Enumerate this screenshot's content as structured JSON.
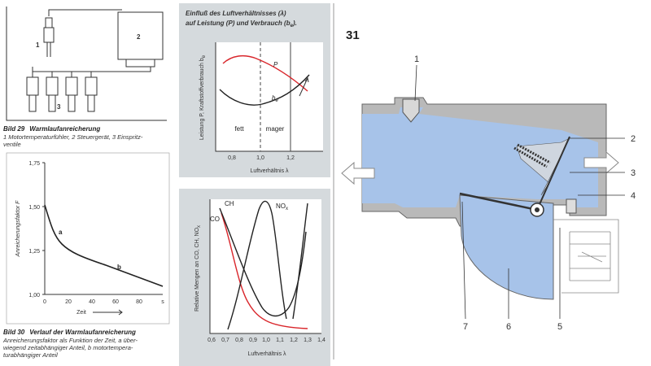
{
  "figure29": {
    "number_labels": [
      "1",
      "2",
      "3"
    ],
    "caption": {
      "label": "Bild 29",
      "title": "Warmlaufanreicherung",
      "lines": [
        "1 Motortemperaturfühler, 2 Steuergerät, 3 Einspritz-",
        "ventile"
      ]
    }
  },
  "figure30": {
    "y_label": "Anreicherungsfaktor F",
    "y_ticks": [
      "1,75",
      "1,50",
      "1,25",
      "1,00"
    ],
    "x_ticks": [
      "0",
      "20",
      "40",
      "60",
      "80",
      "s"
    ],
    "x_label": "Zeit",
    "curve_labels": [
      "a",
      "b"
    ],
    "caption": {
      "label": "Bild 30",
      "title": "Verlauf der Warmlaufanreicherung",
      "lines": [
        "Anreicherungsfaktor als Funktion der Zeit, a über-",
        "wiegend zeitabhängiger Anteil, b motortempera-",
        "turabhängiger Anteil"
      ]
    }
  },
  "chart_power": {
    "title_lines": [
      [
        "Einfluß des Luftverhältnisses (λ)"
      ],
      [
        "auf Leistung (P) und Verbrauch (b",
        "e",
        ")."
      ]
    ],
    "y_label": [
      "Leistung P, Kraftstoffverbrauch b",
      "e"
    ],
    "x_ticks": [
      "0,8",
      "1,0",
      "1,2"
    ],
    "x_label": "Luftverhältnis λ",
    "curve_labels": {
      "power": "P",
      "consumption": [
        "b",
        "e"
      ]
    },
    "regions": [
      "fett",
      "mager"
    ]
  },
  "chart_emissions": {
    "y_label": [
      "Relative Mengen an CO, CH, NO",
      "x"
    ],
    "x_ticks": [
      "0,6",
      "0,7",
      "0,8",
      "0,9",
      "1,0",
      "1,1",
      "1,2",
      "1,3",
      "1,4"
    ],
    "x_label": "Luftverhältnis λ",
    "curve_labels": {
      "co": "CO",
      "ch": "CH",
      "nox": [
        "NO",
        "x"
      ]
    }
  },
  "figure31": {
    "number": "31",
    "labels": [
      "1",
      "2",
      "3",
      "4",
      "5",
      "6",
      "7"
    ]
  }
}
